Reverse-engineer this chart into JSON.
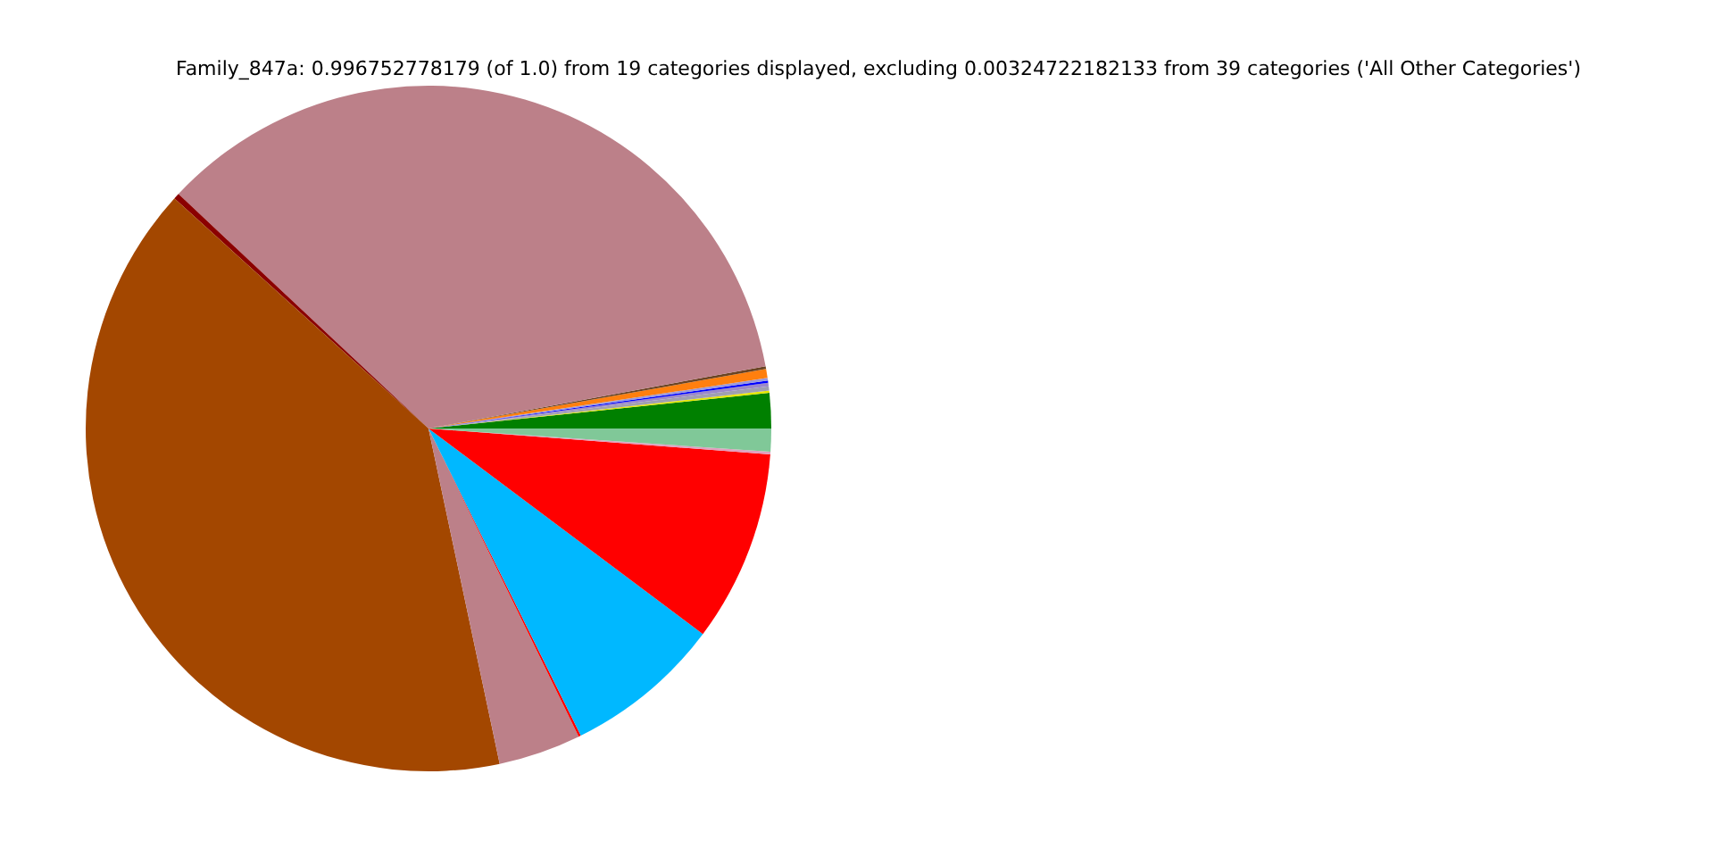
{
  "chart_data": {
    "type": "pie",
    "title": "Family_847a: 0.996752778179 (of 1.0) from 19 categories displayed, excluding 0.00324722182133 from 39 categories ('All Other Categories')",
    "categories": [
      null,
      null,
      null,
      null,
      null,
      null,
      null,
      null,
      null,
      null,
      null,
      null,
      null,
      null,
      null,
      null,
      null
    ],
    "values": [
      1.66,
      0.1,
      0.2,
      0.17,
      0.1,
      0.13,
      0.42,
      0.13,
      35.1,
      0.28,
      40.04,
      3.89,
      0.11,
      7.44,
      9.03,
      0.12,
      1.08
    ],
    "colors": [
      "#008000",
      "#e8e800",
      "#a0a0b0",
      "#9b89c9",
      "#0000ff",
      "#9999dd",
      "#ff7f0e",
      "#6b4423",
      "#bc8089",
      "#8b0000",
      "#a34700",
      "#bc8089",
      "#ff0000",
      "#00b8ff",
      "#ff0000",
      "#e0a0c0",
      "#80c898"
    ]
  }
}
